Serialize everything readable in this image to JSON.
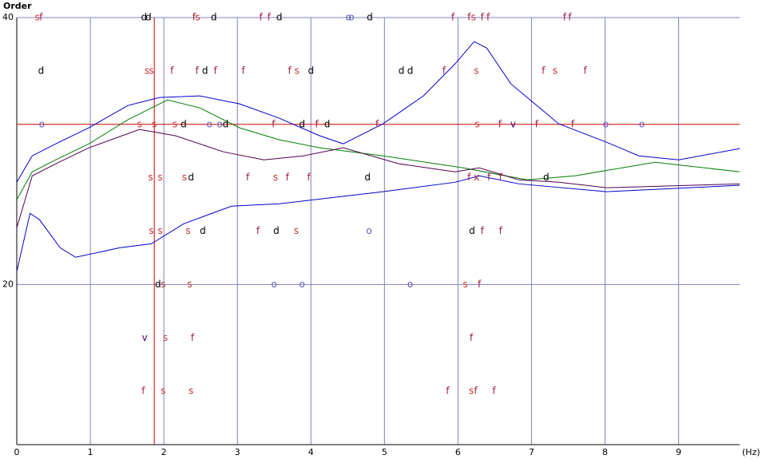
{
  "chart_data": {
    "type": "line",
    "ylabel": "Order",
    "xlabel": "(Hz)",
    "xlim": [
      0,
      9.83
    ],
    "ylim": [
      8,
      40
    ],
    "xticks": [
      0,
      1,
      2,
      3,
      4,
      5,
      6,
      7,
      8,
      9
    ],
    "yticks": [
      20,
      40
    ],
    "grid": true,
    "ref_x": 1.87,
    "ref_y": 32,
    "ref_color": "#d00000",
    "grid_color": "#8080c8",
    "series": [
      {
        "color": "#0000c8",
        "x": [
          0,
          0.21,
          0.53,
          0.98,
          1.51,
          1.94,
          2.49,
          3.03,
          3.57,
          4.12,
          4.44,
          4.98,
          5.53,
          5.96,
          6.22,
          6.39,
          6.72,
          7.37,
          8.02,
          8.46,
          9.0,
          9.83
        ],
        "values": [
          27.66,
          29.64,
          30.54,
          31.74,
          33.41,
          34.01,
          34.13,
          33.53,
          32.46,
          31.14,
          30.54,
          32.04,
          34.13,
          36.53,
          38.2,
          37.72,
          35.03,
          32.04,
          30.66,
          29.64,
          29.34,
          30.18
        ]
      },
      {
        "color": "#008000",
        "x": [
          0,
          0.21,
          0.53,
          0.98,
          1.51,
          2.05,
          2.49,
          3.03,
          3.57,
          4.12,
          4.98,
          6.07,
          6.94,
          7.59,
          8.68,
          9.83
        ],
        "values": [
          26.35,
          28.44,
          29.34,
          30.54,
          32.34,
          33.83,
          33.23,
          31.74,
          30.84,
          30.24,
          29.64,
          28.74,
          27.84,
          28.14,
          29.16,
          28.44
        ]
      },
      {
        "color": "#500050",
        "x": [
          0,
          0.21,
          0.53,
          0.98,
          1.67,
          2.16,
          2.81,
          3.36,
          3.9,
          4.44,
          5.2,
          5.96,
          6.29,
          6.83,
          7.37,
          8.02,
          9.83
        ],
        "values": [
          24.25,
          28.14,
          29.04,
          30.24,
          31.62,
          31.14,
          29.94,
          29.34,
          29.64,
          30.24,
          29.04,
          28.44,
          28.74,
          27.84,
          27.66,
          27.25,
          27.54
        ]
      },
      {
        "color": "#0000c8",
        "x": [
          0,
          0.18,
          0.31,
          0.59,
          0.8,
          1.4,
          1.83,
          2.27,
          2.92,
          3.57,
          4.98,
          5.96,
          6.29,
          6.83,
          8.02,
          9.83
        ],
        "values": [
          20.96,
          25.33,
          24.85,
          22.75,
          22.04,
          22.75,
          23.05,
          24.55,
          25.87,
          26.05,
          26.95,
          27.66,
          28.14,
          27.54,
          26.95,
          27.43
        ]
      }
    ],
    "marker_colors": {
      "s": "#c83030",
      "f": "#a02040",
      "d": "#000000",
      "v": "#400060",
      "o": "#6060c0",
      "x": "#a02040"
    },
    "markers": [
      {
        "label": "s",
        "x": 0.28,
        "y": 40
      },
      {
        "label": "f",
        "x": 0.33,
        "y": 40
      },
      {
        "label": "d",
        "x": 1.73,
        "y": 40
      },
      {
        "label": "d",
        "x": 1.79,
        "y": 40
      },
      {
        "label": "f",
        "x": 2.41,
        "y": 40
      },
      {
        "label": "s",
        "x": 2.46,
        "y": 40
      },
      {
        "label": "d",
        "x": 2.68,
        "y": 40
      },
      {
        "label": "f",
        "x": 3.32,
        "y": 40
      },
      {
        "label": "f",
        "x": 3.43,
        "y": 40
      },
      {
        "label": "d",
        "x": 3.57,
        "y": 40
      },
      {
        "label": "o",
        "x": 4.51,
        "y": 40
      },
      {
        "label": "o",
        "x": 4.55,
        "y": 40
      },
      {
        "label": "d",
        "x": 4.8,
        "y": 40
      },
      {
        "label": "f",
        "x": 5.93,
        "y": 40
      },
      {
        "label": "f",
        "x": 6.15,
        "y": 40
      },
      {
        "label": "s",
        "x": 6.21,
        "y": 40
      },
      {
        "label": "f",
        "x": 6.33,
        "y": 40
      },
      {
        "label": "f",
        "x": 6.41,
        "y": 40
      },
      {
        "label": "f",
        "x": 7.45,
        "y": 40
      },
      {
        "label": "f",
        "x": 7.52,
        "y": 40
      },
      {
        "label": "d",
        "x": 0.33,
        "y": 36
      },
      {
        "label": "s",
        "x": 1.77,
        "y": 36
      },
      {
        "label": "s",
        "x": 1.83,
        "y": 36
      },
      {
        "label": "f",
        "x": 2.11,
        "y": 36
      },
      {
        "label": "f",
        "x": 2.45,
        "y": 36
      },
      {
        "label": "d",
        "x": 2.56,
        "y": 36
      },
      {
        "label": "f",
        "x": 2.7,
        "y": 36
      },
      {
        "label": "f",
        "x": 3.08,
        "y": 36
      },
      {
        "label": "f",
        "x": 3.71,
        "y": 36
      },
      {
        "label": "s",
        "x": 3.81,
        "y": 36
      },
      {
        "label": "d",
        "x": 4.0,
        "y": 36
      },
      {
        "label": "d",
        "x": 5.23,
        "y": 36
      },
      {
        "label": "d",
        "x": 5.35,
        "y": 36
      },
      {
        "label": "f",
        "x": 5.81,
        "y": 36
      },
      {
        "label": "s",
        "x": 6.25,
        "y": 36
      },
      {
        "label": "f",
        "x": 7.16,
        "y": 36
      },
      {
        "label": "s",
        "x": 7.32,
        "y": 36
      },
      {
        "label": "f",
        "x": 7.73,
        "y": 36
      },
      {
        "label": "o",
        "x": 0.34,
        "y": 32
      },
      {
        "label": "s",
        "x": 1.67,
        "y": 32
      },
      {
        "label": "s",
        "x": 1.87,
        "y": 32
      },
      {
        "label": "s",
        "x": 2.15,
        "y": 32
      },
      {
        "label": "d",
        "x": 2.27,
        "y": 32
      },
      {
        "label": "o",
        "x": 2.62,
        "y": 32
      },
      {
        "label": "o",
        "x": 2.76,
        "y": 32
      },
      {
        "label": "d",
        "x": 2.84,
        "y": 32
      },
      {
        "label": "f",
        "x": 3.49,
        "y": 32
      },
      {
        "label": "d",
        "x": 3.88,
        "y": 32
      },
      {
        "label": "f",
        "x": 4.08,
        "y": 32
      },
      {
        "label": "d",
        "x": 4.22,
        "y": 32
      },
      {
        "label": "f",
        "x": 4.9,
        "y": 32
      },
      {
        "label": "s",
        "x": 6.26,
        "y": 32
      },
      {
        "label": "f",
        "x": 6.57,
        "y": 32
      },
      {
        "label": "v",
        "x": 6.75,
        "y": 32
      },
      {
        "label": "f",
        "x": 7.07,
        "y": 32
      },
      {
        "label": "f",
        "x": 7.56,
        "y": 32
      },
      {
        "label": "o",
        "x": 8.01,
        "y": 32
      },
      {
        "label": "o",
        "x": 8.5,
        "y": 32
      },
      {
        "label": "s",
        "x": 1.82,
        "y": 28
      },
      {
        "label": "s",
        "x": 1.95,
        "y": 28
      },
      {
        "label": "s",
        "x": 2.28,
        "y": 28
      },
      {
        "label": "d",
        "x": 2.37,
        "y": 28
      },
      {
        "label": "f",
        "x": 3.14,
        "y": 28
      },
      {
        "label": "s",
        "x": 3.52,
        "y": 28
      },
      {
        "label": "f",
        "x": 3.68,
        "y": 28
      },
      {
        "label": "f",
        "x": 3.97,
        "y": 28
      },
      {
        "label": "d",
        "x": 4.77,
        "y": 28
      },
      {
        "label": "f",
        "x": 6.15,
        "y": 28
      },
      {
        "label": "x",
        "x": 6.25,
        "y": 28
      },
      {
        "label": "f",
        "x": 6.42,
        "y": 28
      },
      {
        "label": "f",
        "x": 6.58,
        "y": 28
      },
      {
        "label": "d",
        "x": 7.2,
        "y": 28
      },
      {
        "label": "s",
        "x": 1.83,
        "y": 24
      },
      {
        "label": "s",
        "x": 1.95,
        "y": 24
      },
      {
        "label": "s",
        "x": 2.33,
        "y": 24
      },
      {
        "label": "d",
        "x": 2.53,
        "y": 24
      },
      {
        "label": "f",
        "x": 3.28,
        "y": 24
      },
      {
        "label": "d",
        "x": 3.53,
        "y": 24
      },
      {
        "label": "s",
        "x": 3.8,
        "y": 24
      },
      {
        "label": "o",
        "x": 4.79,
        "y": 24
      },
      {
        "label": "d",
        "x": 6.19,
        "y": 24
      },
      {
        "label": "f",
        "x": 6.33,
        "y": 24
      },
      {
        "label": "f",
        "x": 6.58,
        "y": 24
      },
      {
        "label": "d",
        "x": 1.92,
        "y": 20
      },
      {
        "label": "s",
        "x": 1.99,
        "y": 20
      },
      {
        "label": "s",
        "x": 2.35,
        "y": 20
      },
      {
        "label": "o",
        "x": 3.5,
        "y": 20
      },
      {
        "label": "o",
        "x": 3.88,
        "y": 20
      },
      {
        "label": "o",
        "x": 5.35,
        "y": 20
      },
      {
        "label": "s",
        "x": 6.1,
        "y": 20
      },
      {
        "label": "f",
        "x": 6.29,
        "y": 20
      },
      {
        "label": "v",
        "x": 1.74,
        "y": 16
      },
      {
        "label": "s",
        "x": 2.02,
        "y": 16
      },
      {
        "label": "f",
        "x": 2.39,
        "y": 16
      },
      {
        "label": "f",
        "x": 6.18,
        "y": 16
      },
      {
        "label": "f",
        "x": 1.72,
        "y": 12
      },
      {
        "label": "s",
        "x": 1.99,
        "y": 12
      },
      {
        "label": "s",
        "x": 2.37,
        "y": 12
      },
      {
        "label": "f",
        "x": 5.86,
        "y": 12
      },
      {
        "label": "s",
        "x": 6.18,
        "y": 12
      },
      {
        "label": "f",
        "x": 6.24,
        "y": 12
      },
      {
        "label": "f",
        "x": 6.49,
        "y": 12
      }
    ]
  }
}
